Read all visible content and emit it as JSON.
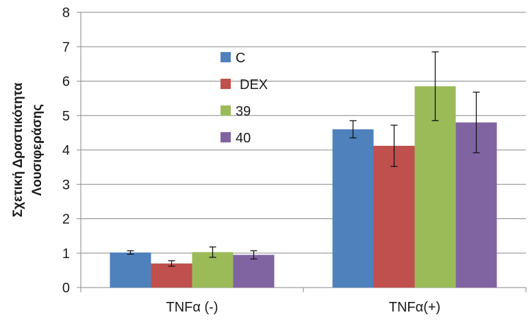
{
  "chart_data": {
    "type": "bar",
    "title": "",
    "xlabel": "",
    "ylabel_lines": [
      "Σχετική Δραστικότητα",
      "Λουσιφεράσης"
    ],
    "ylim": [
      0,
      8
    ],
    "yticks": [
      0,
      1,
      2,
      3,
      4,
      5,
      6,
      7,
      8
    ],
    "grid": true,
    "legend_position": "top-center",
    "categories": [
      "TNFα (-)",
      "TNFα(+)"
    ],
    "series": [
      {
        "name": "C",
        "color": "#4f81bd",
        "values": [
          1.02,
          4.6
        ],
        "errors": [
          0.05,
          0.25
        ]
      },
      {
        "name": "DEX",
        "color": "#c0504d",
        "values": [
          0.7,
          4.12
        ],
        "errors": [
          0.08,
          0.6
        ]
      },
      {
        "name": "39",
        "color": "#9bbb59",
        "values": [
          1.03,
          5.85
        ],
        "errors": [
          0.15,
          1.0
        ]
      },
      {
        "name": "40",
        "color": "#8064a2",
        "values": [
          0.95,
          4.8
        ],
        "errors": [
          0.12,
          0.88
        ]
      }
    ]
  }
}
